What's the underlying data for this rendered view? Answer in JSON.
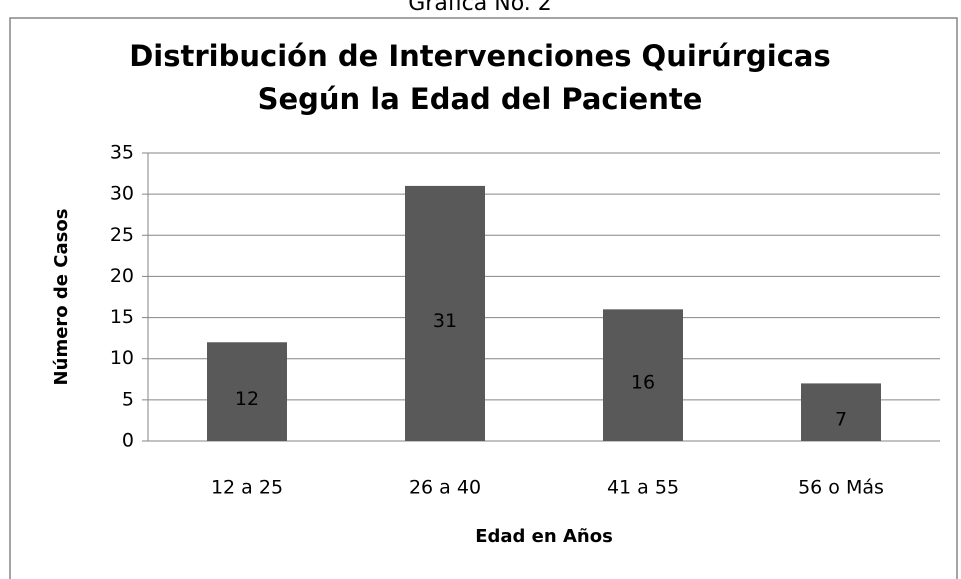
{
  "chart_data": {
    "type": "bar",
    "caption": "Gráfica No. 2",
    "title": [
      "Distribución de Intervenciones Quirúrgicas",
      "Según la Edad del Paciente"
    ],
    "x_label": "Edad en Años",
    "y_label": "Número de Casos",
    "categories": [
      "12 a 25",
      "26 a 40",
      "41 a 55",
      "56 o Más"
    ],
    "values": [
      12,
      31,
      16,
      7
    ],
    "color": "#595959",
    "ylim": [
      0,
      35
    ],
    "yticks": [
      0,
      5,
      10,
      15,
      20,
      25,
      30,
      35
    ],
    "grid": true
  }
}
